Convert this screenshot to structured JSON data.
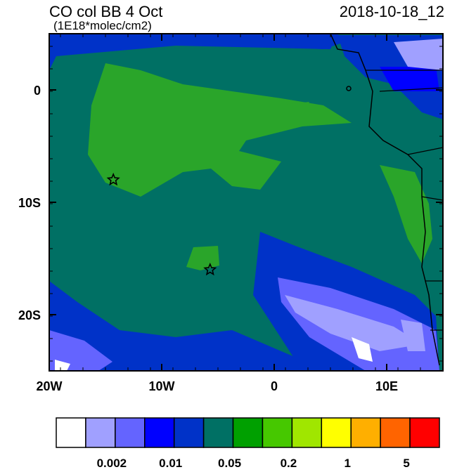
{
  "map": {
    "title": "CO col BB 4 Oct",
    "units": "(1E18*molec/cm2)",
    "date": "2018-10-18_12",
    "lonlim": [
      -20,
      15
    ],
    "latlim": [
      -25,
      5
    ],
    "lon_ticks": [
      {
        "value": -20,
        "label": "20W"
      },
      {
        "value": -10,
        "label": "10W"
      },
      {
        "value": 0,
        "label": "0"
      },
      {
        "value": 10,
        "label": "10E"
      }
    ],
    "lat_ticks": [
      {
        "value": 0,
        "label": "0"
      },
      {
        "value": -10,
        "label": "10S"
      },
      {
        "value": -20,
        "label": "20S"
      }
    ],
    "markers": [
      {
        "lon": -14.3,
        "lat": -8.0
      },
      {
        "lon": -5.7,
        "lat": -16.0
      }
    ],
    "colorbar": {
      "colors": [
        "#ffffff",
        "#a0a0ff",
        "#6464ff",
        "#0000ff",
        "#0032c8",
        "#007064",
        "#00a000",
        "#46c800",
        "#a0e600",
        "#ffff00",
        "#ffaf00",
        "#ff6400",
        "#ff0000"
      ],
      "labels": [
        "0.002",
        "0.01",
        "0.05",
        "0.2",
        "1",
        "5"
      ]
    }
  }
}
